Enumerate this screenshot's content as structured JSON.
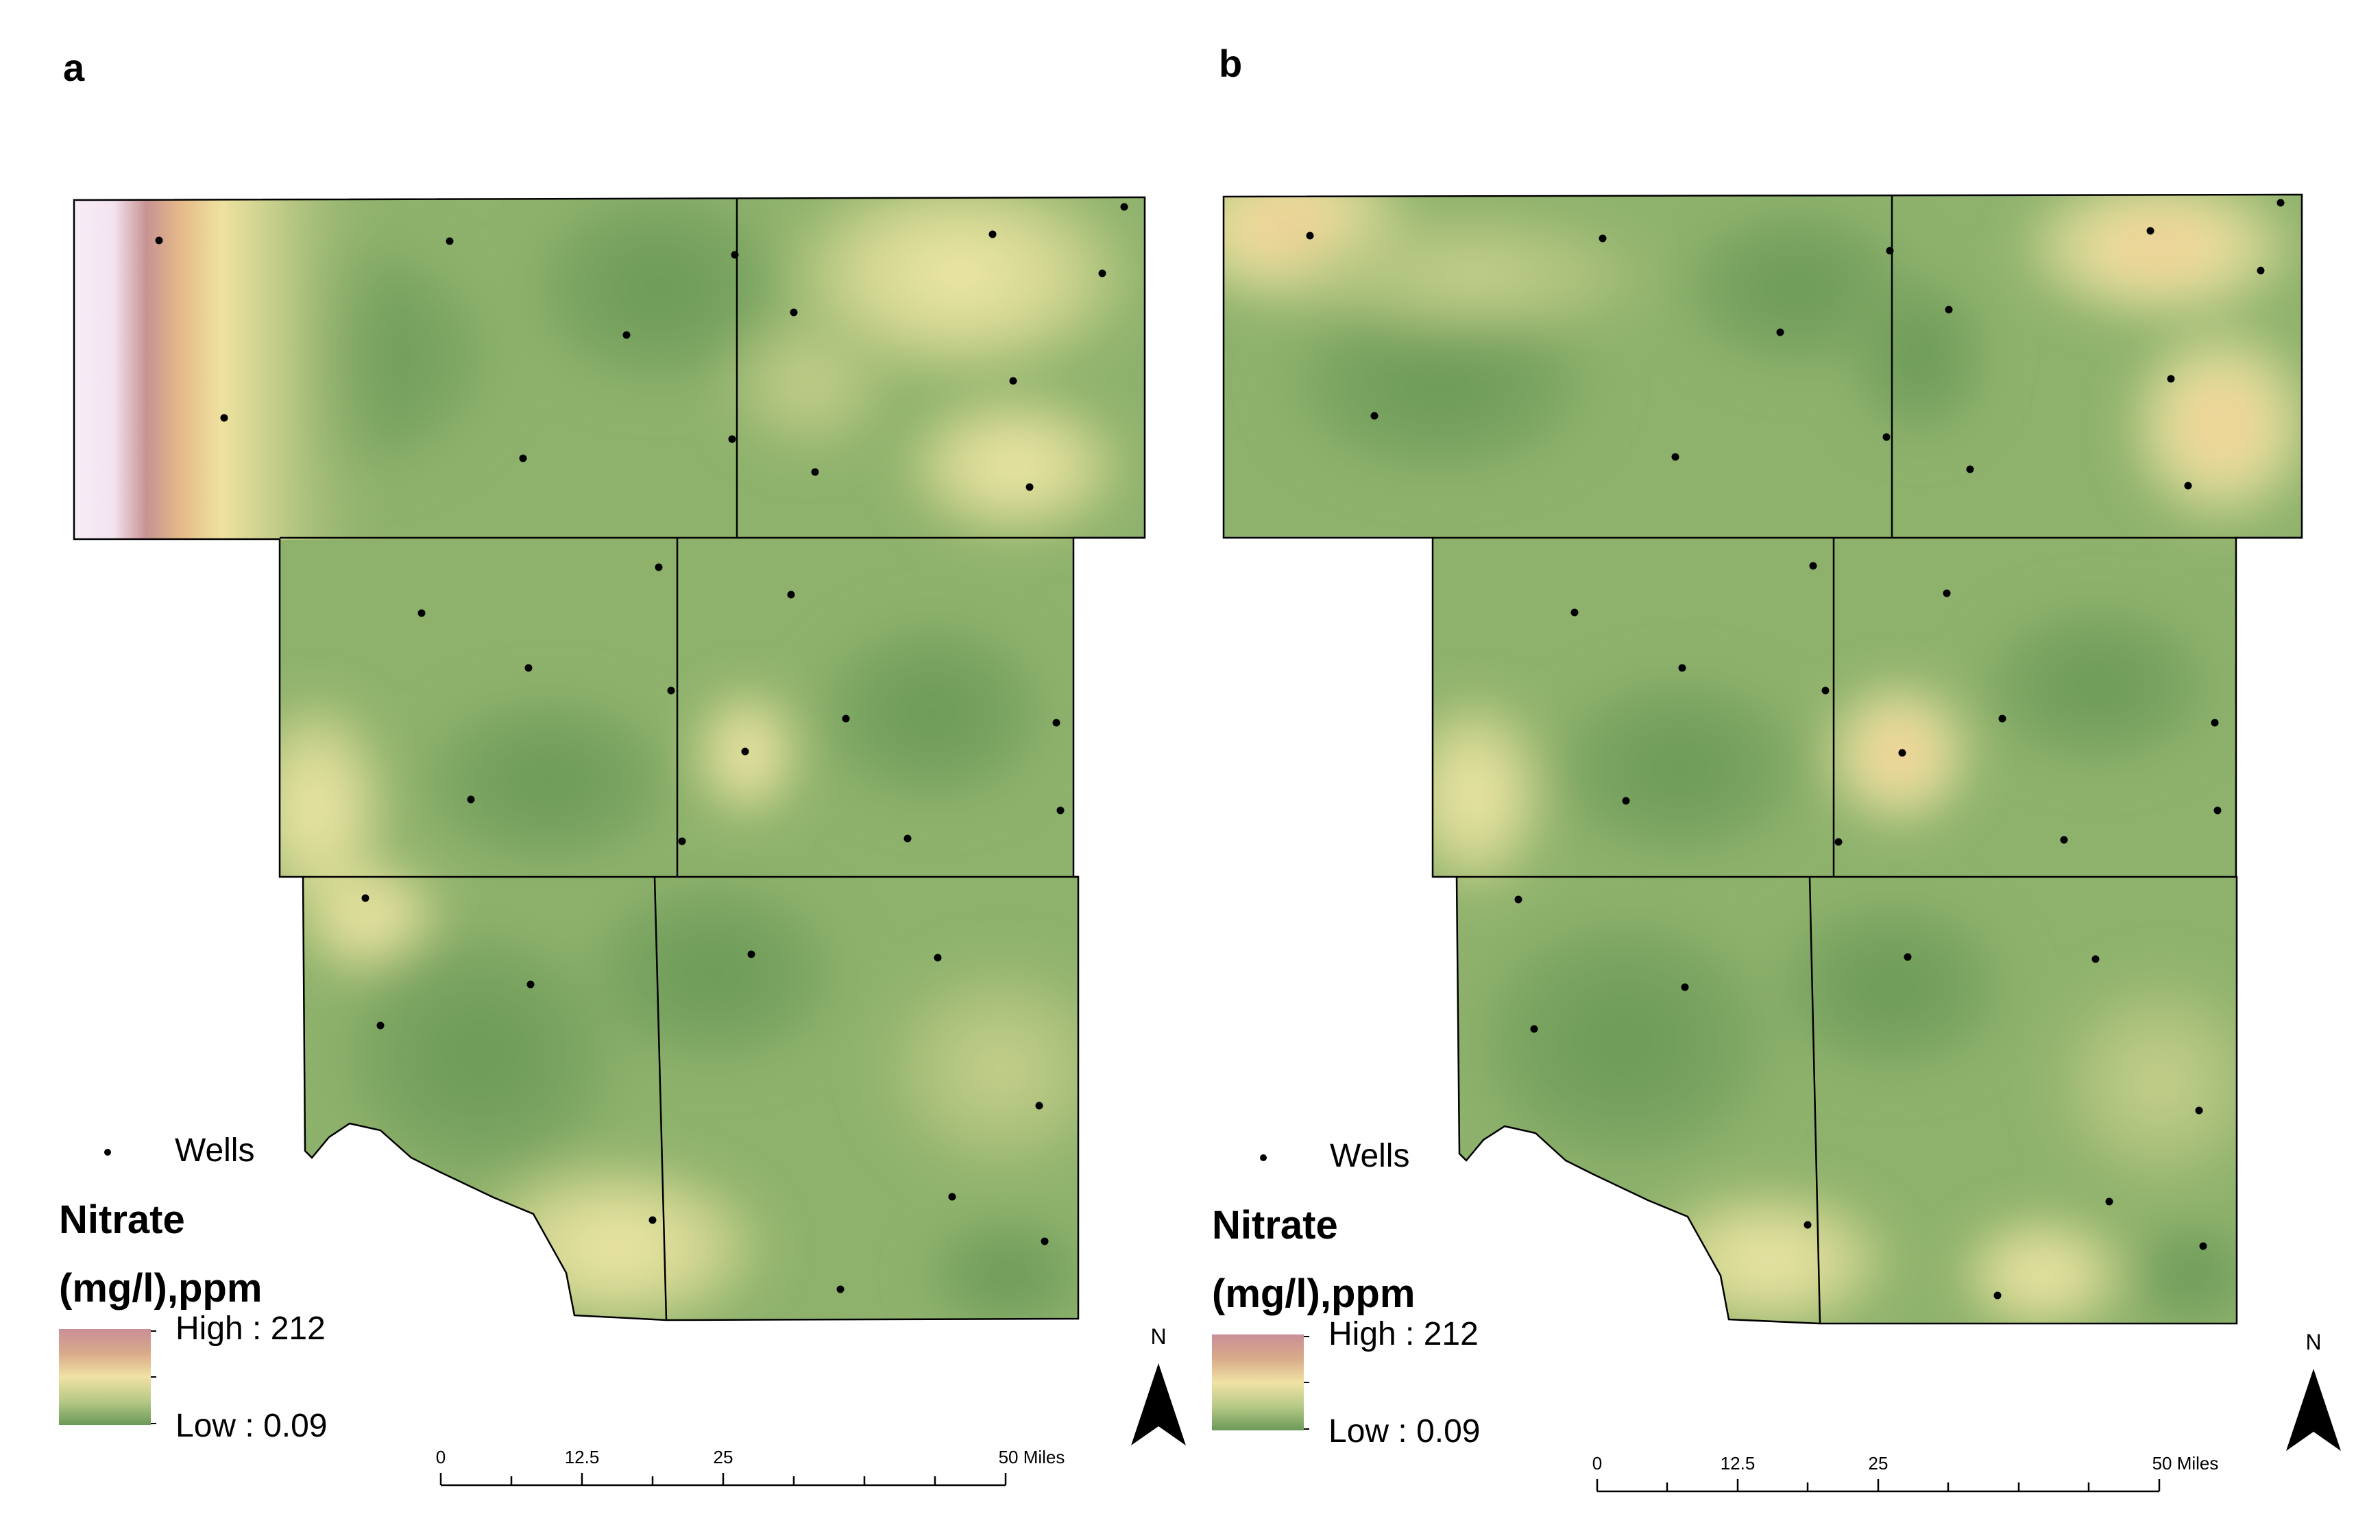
{
  "figure": {
    "panels": [
      {
        "label": "a",
        "legend": {
          "wells_label": "Wells",
          "title_line1": "Nitrate",
          "title_line2": "(mg/l),ppm",
          "high_label": "High : 212",
          "low_label": "Low : 0.09"
        },
        "scale_bar": {
          "ticks": [
            "0",
            "12.5",
            "25",
            "50 Miles"
          ]
        },
        "north_label": "N"
      },
      {
        "label": "b",
        "legend": {
          "wells_label": "Wells",
          "title_line1": "Nitrate",
          "title_line2": "(mg/l),ppm",
          "high_label": "High : 212",
          "low_label": "Low : 0.09"
        },
        "scale_bar": {
          "ticks": [
            "0",
            "12.5",
            "25",
            "50 Miles"
          ]
        },
        "north_label": "N"
      }
    ]
  },
  "colors": {
    "low": "#6b9a58",
    "mid_low": "#a9c27a",
    "mid": "#efe7a6",
    "mid_high": "#e5b889",
    "high_band": "#c79393",
    "high": "#f8eef8"
  }
}
